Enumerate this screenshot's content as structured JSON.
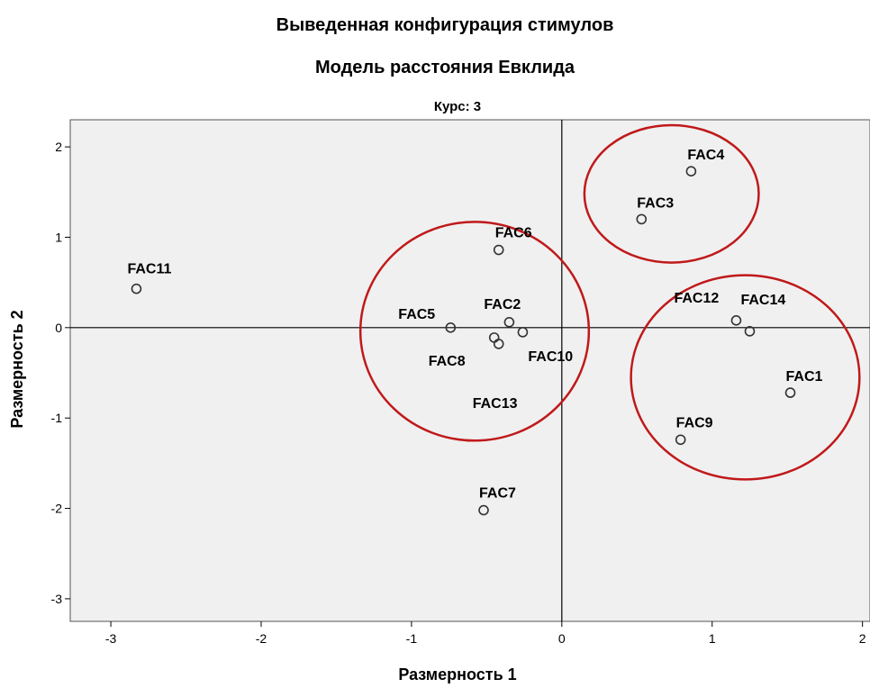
{
  "chart_data": {
    "type": "scatter",
    "title": "Выведенная конфигурация стимулов",
    "subtitle": "Модель расстояния Евклида",
    "panel_title": "Курс: 3",
    "xlabel": "Размерность 1",
    "ylabel": "Размерность 2",
    "xlim": [
      -3.27,
      2.05
    ],
    "ylim": [
      -3.25,
      2.3
    ],
    "xticks": [
      "-3",
      "-2",
      "-1",
      "0",
      "1",
      "2"
    ],
    "yticks": [
      "2",
      "1",
      "0",
      "-1",
      "-2",
      "-3"
    ],
    "grid": false,
    "reference_lines": {
      "x": 0,
      "y": 0
    },
    "points": [
      {
        "label": "FAC1",
        "x": 1.52,
        "y": -0.72
      },
      {
        "label": "FAC2",
        "x": -0.35,
        "y": 0.06
      },
      {
        "label": "FAC3",
        "x": 0.53,
        "y": 1.2
      },
      {
        "label": "FAC4",
        "x": 0.86,
        "y": 1.73
      },
      {
        "label": "FAC5",
        "x": -0.74,
        "y": 0.0
      },
      {
        "label": "FAC6",
        "x": -0.42,
        "y": 0.86
      },
      {
        "label": "FAC7",
        "x": -0.52,
        "y": -2.02
      },
      {
        "label": "FAC8",
        "x": -0.45,
        "y": -0.11
      },
      {
        "label": "FAC9",
        "x": 0.79,
        "y": -1.24
      },
      {
        "label": "FAC10",
        "x": -0.26,
        "y": -0.05
      },
      {
        "label": "FAC11",
        "x": -2.83,
        "y": 0.43
      },
      {
        "label": "FAC12",
        "x": 1.16,
        "y": 0.08
      },
      {
        "label": "FAC13",
        "x": -0.42,
        "y": -0.18
      },
      {
        "label": "FAC14",
        "x": 1.25,
        "y": -0.04
      }
    ],
    "cluster_circles": [
      {
        "cx": -0.58,
        "cy": -0.04,
        "rx": 0.76,
        "ry": 1.21
      },
      {
        "cx": 0.73,
        "cy": 1.48,
        "rx": 0.58,
        "ry": 0.76
      },
      {
        "cx": 1.22,
        "cy": -0.55,
        "rx": 0.76,
        "ry": 1.13
      }
    ],
    "colors": {
      "plot_background": "#f0f0f0",
      "circle": "#c0191a",
      "marker_edge": "#333333",
      "axis": "#000000"
    }
  }
}
